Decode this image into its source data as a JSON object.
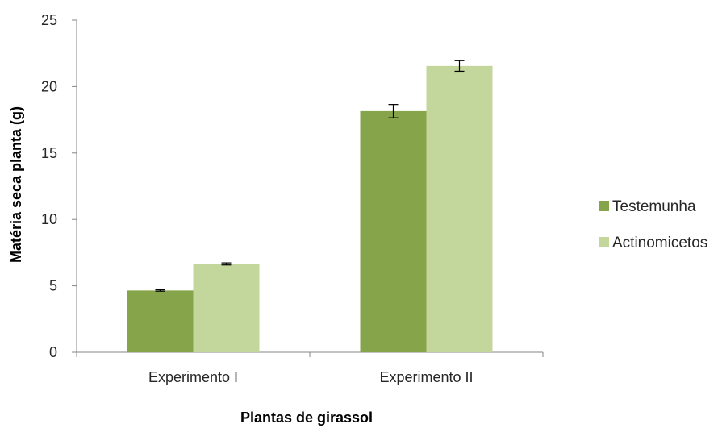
{
  "chart_data": {
    "type": "bar",
    "categories": [
      "Experimento I",
      "Experimento II"
    ],
    "series": [
      {
        "name": "Testemunha",
        "values": [
          4.65,
          18.15
        ],
        "errors": [
          0.05,
          0.5
        ],
        "color": "#86a44a"
      },
      {
        "name": "Actinomicetos",
        "values": [
          6.65,
          21.55
        ],
        "errors": [
          0.08,
          0.4
        ],
        "color": "#c3d69b"
      }
    ],
    "xlabel": "Plantas de girassol",
    "ylabel": "Matéria seca planta (g)",
    "ylim": [
      0,
      25
    ],
    "yticks": [
      "0",
      "5",
      "10",
      "15",
      "20",
      "25"
    ],
    "grid": false,
    "legend": "right"
  }
}
